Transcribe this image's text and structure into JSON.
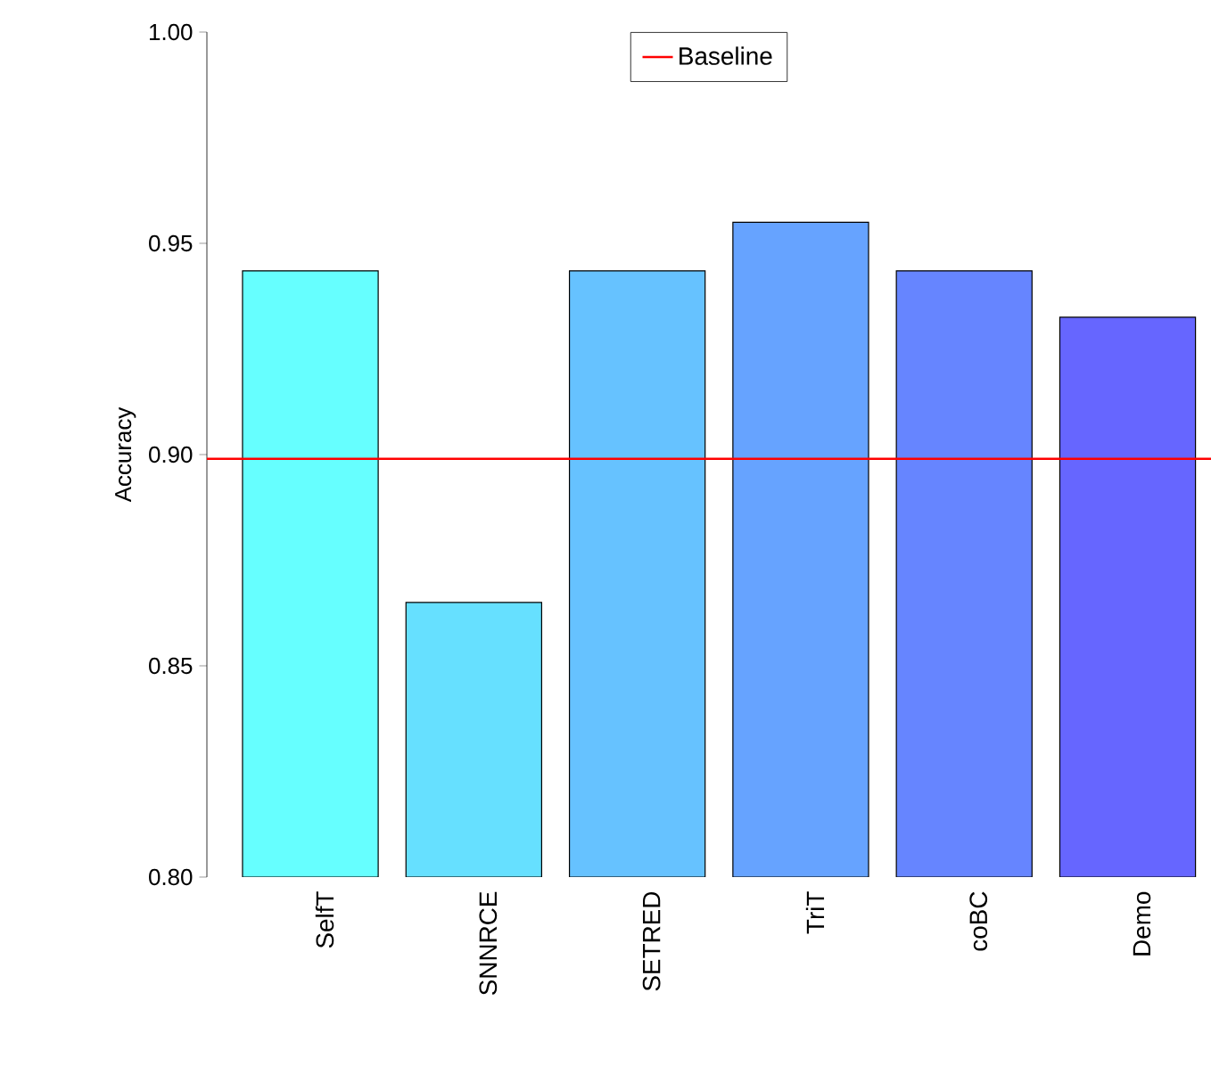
{
  "chart_data": {
    "type": "bar",
    "ylabel": "Accuracy",
    "categories": [
      "SelfT",
      "SNNRCE",
      "SETRED",
      "TriT",
      "coBC",
      "Demo"
    ],
    "values": [
      0.9435,
      0.865,
      0.9435,
      0.955,
      0.9435,
      0.9325
    ],
    "colors": [
      "#66ffff",
      "#66e0ff",
      "#66c2ff",
      "#66a3ff",
      "#6685ff",
      "#6666ff"
    ],
    "ylim": [
      0.8,
      1.0
    ],
    "yticks": [
      {
        "value": 0.8,
        "label": "0.80"
      },
      {
        "value": 0.85,
        "label": "0.85"
      },
      {
        "value": 0.9,
        "label": "0.90"
      },
      {
        "value": 0.95,
        "label": "0.95"
      },
      {
        "value": 1.0,
        "label": "1.00"
      }
    ],
    "ref_lines": [
      {
        "axis": "y",
        "value": 0.899,
        "label": "Baseline",
        "color": "#ff0000",
        "line_style": "solid"
      }
    ],
    "legend": "top"
  }
}
